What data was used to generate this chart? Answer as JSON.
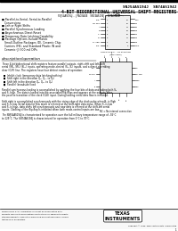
{
  "title_line1": "SNJ54AS194J  SN74AS194J",
  "title_line2": "4-BIT BIDIRECTIONAL UNIVERSAL SHIFT REGISTERS",
  "header_line": "SNJ54AS194J ... J PACKAGE  SN74AS194J ... N PACKAGE",
  "bg_color": "#ffffff",
  "text_color": "#000000",
  "bullet_items": [
    "Parallel-to-Serial, Serial-to-Parallel",
    "   Conversions",
    "Left or Right Shifts",
    "Parallel Synchronous Loading",
    "Asynchronous Direct Reset",
    "Temporary Data Latching Capability",
    "Package Options Include Plastic",
    "   Small-Outline Packages (D), Ceramic Chip",
    "   Carriers (FK), and Standard Plastic (N and",
    "   Ceramic (J) 300-mil DIPs"
  ],
  "section_title": "description/operation",
  "body_text_lines": [
    "These 4-bit bidirectional shift registers",
    "feature parallel outputs, right-shift and left-shift",
    "serial (SR, SR0, 1), (SL0) inputs, operating-",
    "mode-control (S0, S1) inputs, and a direct-",
    "overriding clear (CLR) line. The registers have",
    "four distinct modes of operation:",
    "",
    "  ■  Inhibit clock (temporary data latching/nothing)",
    "  ■  Shift right in the direction Q0, Q1eto Q3)",
    "  ■  Shift left in the direction Q3, Q2eto Q0)",
    "  ■  Parallel (broadside) load",
    "",
    "Parallel synchronous loading is accomplished by",
    "applying the four bits of data and taking both S0",
    "and S1 high. The data is loaded into the",
    "associated flip-flops and appears at the outputs",
    "after the positive transition of the clock (CLK)",
    "input. During loading serial data flow is inhibited.",
    "",
    "Shift right is accomplished synchronously with the",
    "rising edge of the clock pulse when S0 is high and S1 is low.",
    "Serial data for this mode is entered at the shift-right data input.",
    "When S0 is low and S1 is high, data shifts left",
    "synchronously and new data is entered at the shift-left serial inputs.",
    "Clocking of the flip-flop is inhibited when",
    "both mode-control inputs are low.",
    "",
    "The SNJ54AS194J is characterized for operation over the full military",
    "temperature range of -55°C to 125°C. The",
    "SN74AS194J is characterized for operation from 0°C to 70°C."
  ],
  "footer_left": "PRODUCTION DATA information is current as of publication date.",
  "footer_left2": "Products conform to specifications per the terms of Texas Instruments",
  "footer_left3": "standard warranty. Production processing does not necessarily include",
  "footer_left4": "testing of all parameters.",
  "footer_right": "Copyright © 1988, Texas Instruments Incorporated",
  "footer_page": "1",
  "logo_text": "TEXAS\nINSTRUMENTS",
  "top_bar_color": "#000000",
  "chip_dip_pins_left": [
    "CLR",
    "SR SER",
    "A",
    "B",
    "C",
    "D",
    "SL SER",
    "CLK"
  ],
  "chip_dip_pins_right": [
    "VCC",
    "S1",
    "S0",
    "Q0",
    "Q1",
    "Q2",
    "Q3",
    "GND"
  ],
  "chip_so_pins_top": [
    "CLR",
    "SR SER",
    "A",
    "B",
    "C",
    "D",
    "SL SER",
    "CLK"
  ],
  "chip_so_pins_bottom": [
    "VCC",
    "S1",
    "S0",
    "Q0",
    "Q1",
    "Q2",
    "Q3",
    "GND"
  ]
}
